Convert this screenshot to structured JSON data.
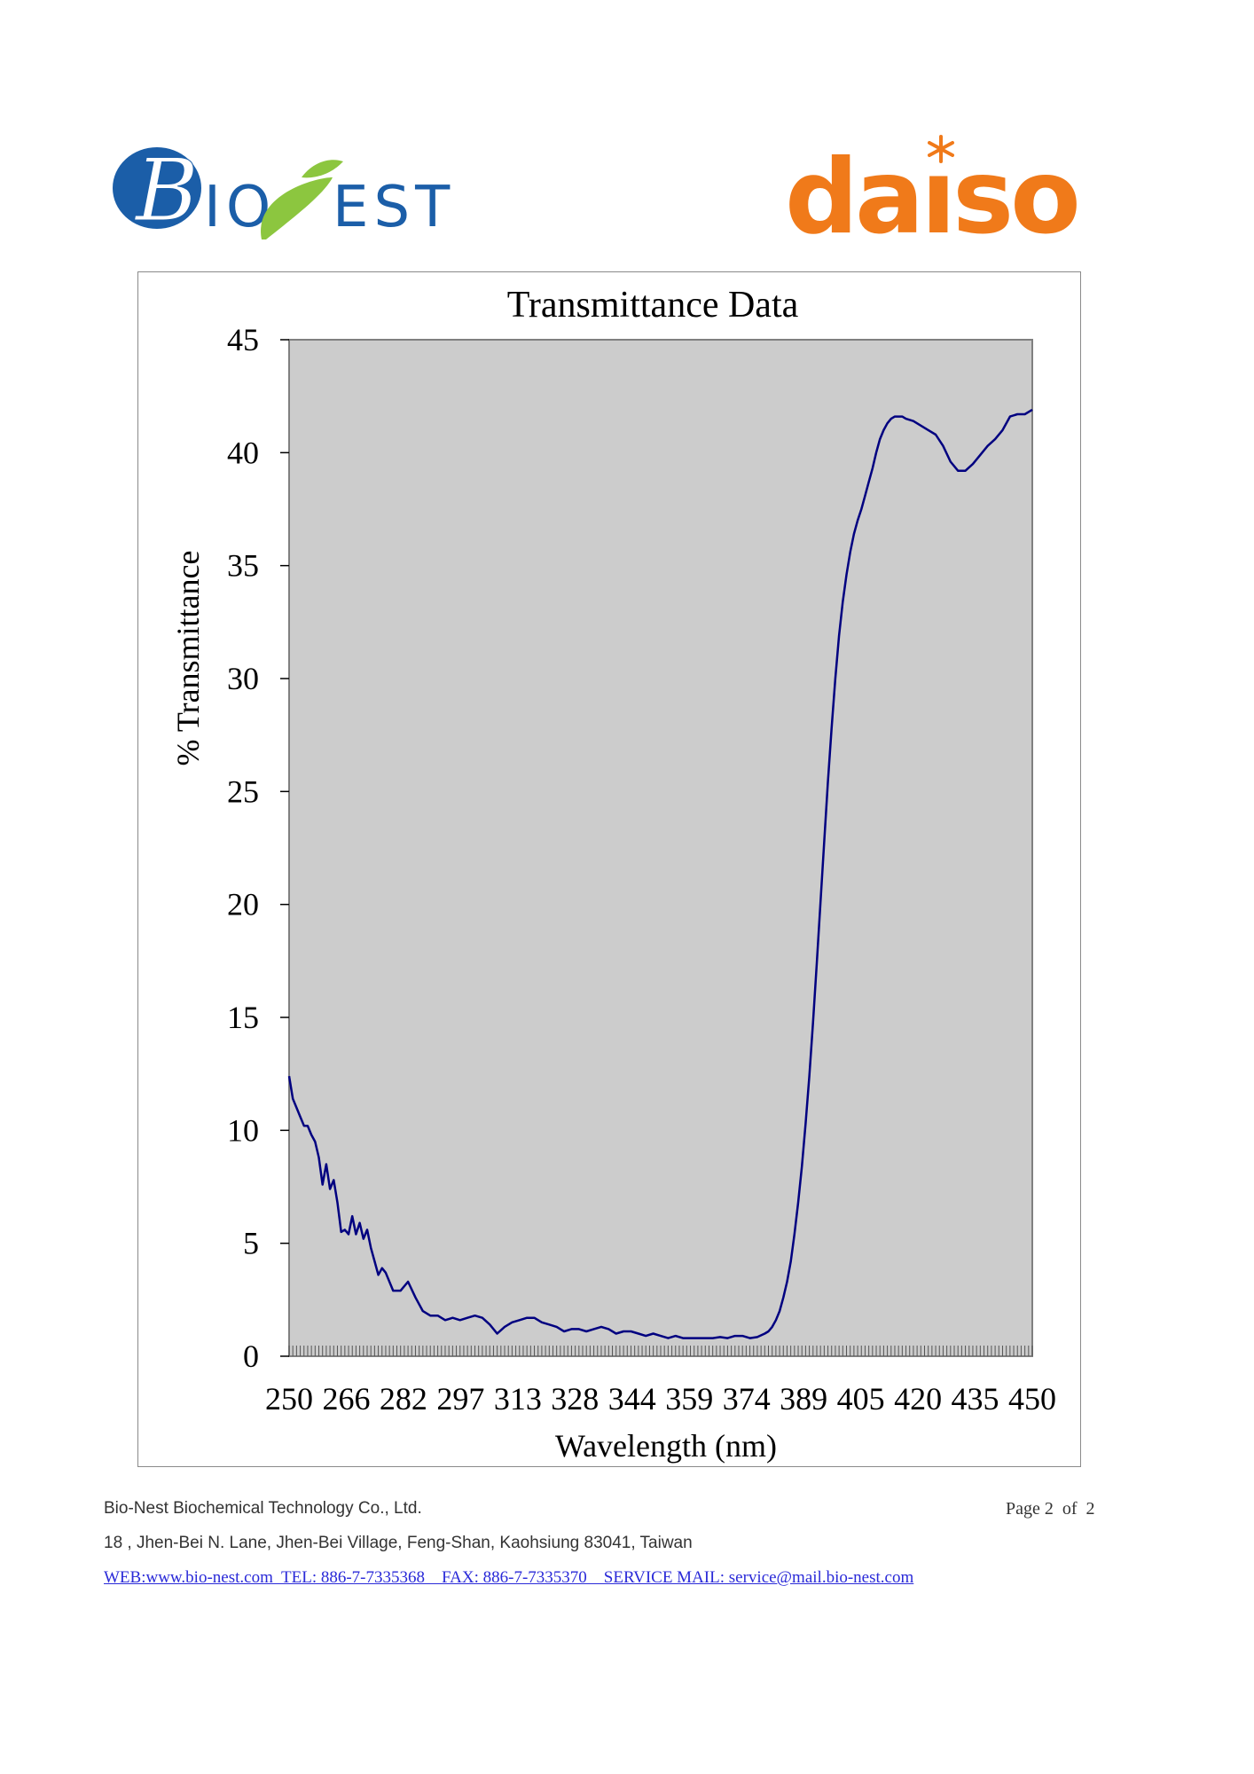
{
  "logos": {
    "left": "BIONEST",
    "right": "daiso"
  },
  "colors": {
    "plot_background": "#cccccc",
    "line": "#000080",
    "bionest_blue": "#1b5ea8",
    "bionest_green": "#8cc63f",
    "daiso_orange": "#f07a1a",
    "link": "#2a2ad8"
  },
  "chart_data": {
    "type": "line",
    "title": "Transmittance Data",
    "xlabel": "Wavelength (nm)",
    "ylabel": "% Transmittance",
    "xlim": [
      250,
      450
    ],
    "ylim": [
      0,
      45
    ],
    "x_tick_labels": [
      "250",
      "266",
      "282",
      "297",
      "313",
      "328",
      "344",
      "359",
      "374",
      "389",
      "405",
      "420",
      "435",
      "450"
    ],
    "y_tick_labels": [
      "0",
      "5",
      "10",
      "15",
      "20",
      "25",
      "30",
      "35",
      "40",
      "45"
    ],
    "grid": false,
    "legend": "none",
    "series": [
      {
        "x": [
          250,
          251,
          252,
          253,
          254,
          255,
          256,
          257,
          258,
          259,
          260,
          261,
          262,
          263,
          264,
          265,
          266,
          267,
          268,
          269,
          270,
          271,
          272,
          273,
          274,
          275,
          276,
          278,
          280,
          282,
          284,
          286,
          288,
          290,
          292,
          294,
          296,
          298,
          300,
          302,
          304,
          306,
          308,
          310,
          312,
          314,
          316,
          318,
          320,
          322,
          324,
          326,
          328,
          330,
          332,
          334,
          336,
          338,
          340,
          342,
          344,
          346,
          348,
          350,
          352,
          354,
          356,
          358,
          360,
          362,
          364,
          366,
          368,
          370,
          372,
          374,
          376,
          378,
          379,
          380,
          381,
          382,
          383,
          384,
          385,
          386,
          387,
          388,
          389,
          390,
          391,
          392,
          393,
          394,
          395,
          396,
          397,
          398,
          399,
          400,
          401,
          402,
          403,
          404,
          405,
          406,
          407,
          408,
          409,
          410,
          411,
          412,
          413,
          414,
          415,
          416,
          418,
          420,
          422,
          424,
          426,
          428,
          430,
          432,
          434,
          436,
          438,
          440,
          442,
          444,
          446,
          448,
          450
        ],
        "y": [
          12.4,
          11.4,
          11.0,
          10.6,
          10.2,
          10.2,
          9.8,
          9.5,
          8.8,
          7.6,
          8.5,
          7.4,
          7.8,
          6.8,
          5.5,
          5.6,
          5.4,
          6.2,
          5.4,
          5.9,
          5.2,
          5.6,
          4.8,
          4.2,
          3.6,
          3.9,
          3.7,
          2.9,
          2.9,
          3.3,
          2.6,
          2.0,
          1.8,
          1.8,
          1.6,
          1.7,
          1.6,
          1.7,
          1.8,
          1.7,
          1.4,
          1.0,
          1.3,
          1.5,
          1.6,
          1.7,
          1.7,
          1.5,
          1.4,
          1.3,
          1.1,
          1.2,
          1.2,
          1.1,
          1.2,
          1.3,
          1.2,
          1.0,
          1.1,
          1.1,
          1.0,
          0.9,
          1.0,
          0.9,
          0.8,
          0.9,
          0.8,
          0.8,
          0.8,
          0.8,
          0.8,
          0.85,
          0.8,
          0.9,
          0.9,
          0.8,
          0.85,
          1.0,
          1.1,
          1.3,
          1.6,
          2.0,
          2.6,
          3.3,
          4.2,
          5.4,
          6.8,
          8.4,
          10.3,
          12.4,
          14.8,
          17.4,
          20.1,
          22.8,
          25.4,
          27.8,
          30.0,
          31.9,
          33.4,
          34.6,
          35.6,
          36.4,
          37.0,
          37.5,
          38.1,
          38.7,
          39.3,
          40.0,
          40.6,
          41.0,
          41.3,
          41.5,
          41.6,
          41.6,
          41.6,
          41.5,
          41.4,
          41.2,
          41.0,
          40.8,
          40.3,
          39.6,
          39.2,
          39.2,
          39.5,
          39.9,
          40.3,
          40.6,
          41.0,
          41.6,
          41.7,
          41.7,
          41.9
        ]
      }
    ]
  },
  "footer": {
    "company": "Bio-Nest Biochemical Technology Co., Ltd.",
    "address": "18 , Jhen-Bei N. Lane, Jhen-Bei Village, Feng-Shan, Kaohsiung 83041, Taiwan",
    "contact": "WEB:www.bio-nest.com  TEL: 886-7-7335368    FAX: 886-7-7335370    SERVICE MAIL: service@mail.bio-nest.com",
    "page": "Page 2  of  2"
  }
}
